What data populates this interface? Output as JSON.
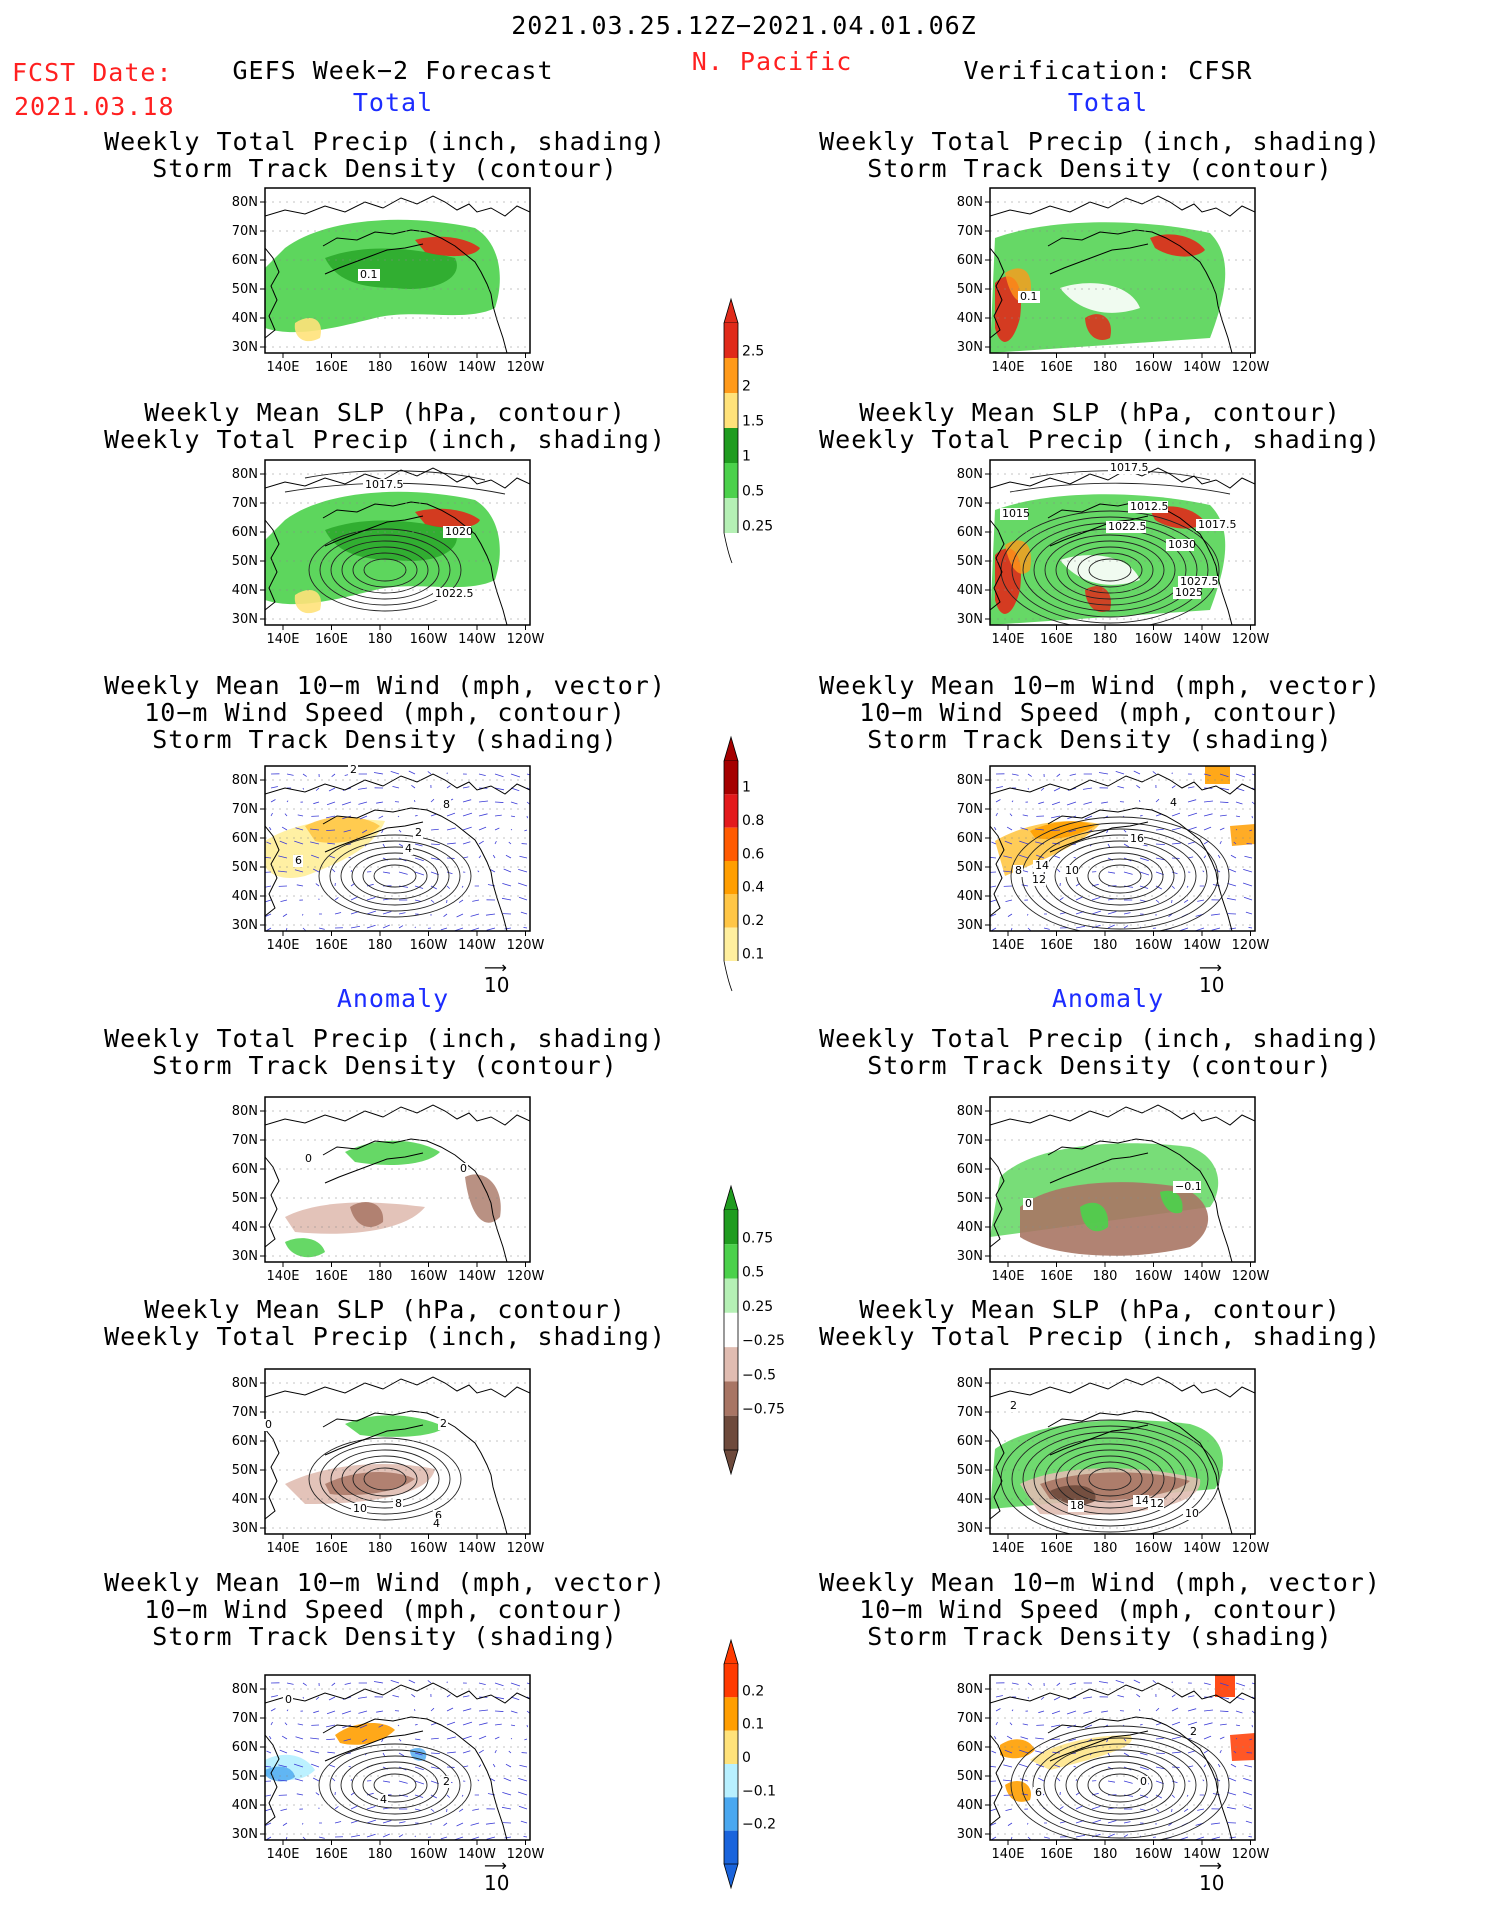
{
  "header": {
    "period": "2021.03.25.12Z−2021.04.01.06Z",
    "region": "N. Pacific",
    "fcst_label": "FCST Date:",
    "fcst_date": "2021.03.18",
    "left_title": "GEFS Week−2 Forecast",
    "right_title": "Verification: CFSR"
  },
  "sections": {
    "total": "Total",
    "anomaly": "Anomaly"
  },
  "titles": {
    "precip": [
      "Weekly Total Precip (inch, shading)",
      "Storm Track Density (contour)"
    ],
    "slp": [
      "Weekly Mean SLP (hPa, contour)",
      "Weekly Total Precip (inch, shading)"
    ],
    "wind": [
      "Weekly Mean 10−m Wind (mph, vector)",
      "10−m Wind Speed (mph, contour)",
      "Storm Track Density (shading)"
    ]
  },
  "axes": {
    "lat_ticks": [
      "80N",
      "70N",
      "60N",
      "50N",
      "40N",
      "30N"
    ],
    "lon_ticks": [
      "140E",
      "160E",
      "180",
      "160W",
      "140W",
      "120W"
    ]
  },
  "vector_ref": "10",
  "colorbars": {
    "total_precip": {
      "labels": [
        "2.5",
        "2",
        "1.5",
        "1",
        "0.5",
        "0.25"
      ],
      "colors": [
        "#e02a1a",
        "#ff9a1a",
        "#ffe27a",
        "#1f9c1f",
        "#4bd14b",
        "#b5f0b5"
      ]
    },
    "total_std": {
      "labels": [
        "1",
        "0.8",
        "0.6",
        "0.4",
        "0.2",
        "0.1"
      ],
      "colors": [
        "#a50000",
        "#e31a1c",
        "#ff5a00",
        "#ff9e00",
        "#ffc646",
        "#ffef9e"
      ]
    },
    "anom_precip": {
      "labels": [
        "0.75",
        "0.5",
        "0.25",
        "−0.25",
        "−0.5",
        "−0.75"
      ],
      "colors": [
        "#1f9c1f",
        "#4bd14b",
        "#b5f0b5",
        "#ffffff",
        "#e0bcb1",
        "#a87564",
        "#6e4a3c"
      ]
    },
    "anom_std": {
      "labels": [
        "0.2",
        "0.1",
        "0",
        "−0.1",
        "−0.2"
      ],
      "colors": [
        "#ff3a00",
        "#ff9e00",
        "#ffe27a",
        "#b8f0ff",
        "#4aa8f0",
        "#1a64dc"
      ]
    }
  },
  "panel_labels": {
    "p1": [
      "0.1"
    ],
    "p2": [
      "0.1"
    ],
    "p3": [
      "1017.5",
      "1020",
      "1022.5"
    ],
    "p4": [
      "1017.5",
      "1015",
      "1012.5",
      "1022.5",
      "1017.5",
      "1030",
      "1027.5",
      "1025"
    ],
    "p5": [
      "2",
      "8",
      "6",
      "4",
      "2"
    ],
    "p6": [
      "8",
      "14",
      "10",
      "12",
      "16",
      "4"
    ],
    "p7": [
      "0",
      "0"
    ],
    "p8": [
      "0",
      "−0.1"
    ],
    "p9": [
      "0",
      "10",
      "8",
      "2",
      "6",
      "4"
    ],
    "p10": [
      "2",
      "18",
      "14",
      "12",
      "10"
    ],
    "p11": [
      "0",
      "4",
      "2"
    ],
    "p12": [
      "6",
      "2",
      "0"
    ]
  },
  "colors": {
    "red_text": "#ff2020",
    "blue_text": "#1c2cff",
    "coast": "#000000",
    "vector": "#3b3bd6"
  }
}
